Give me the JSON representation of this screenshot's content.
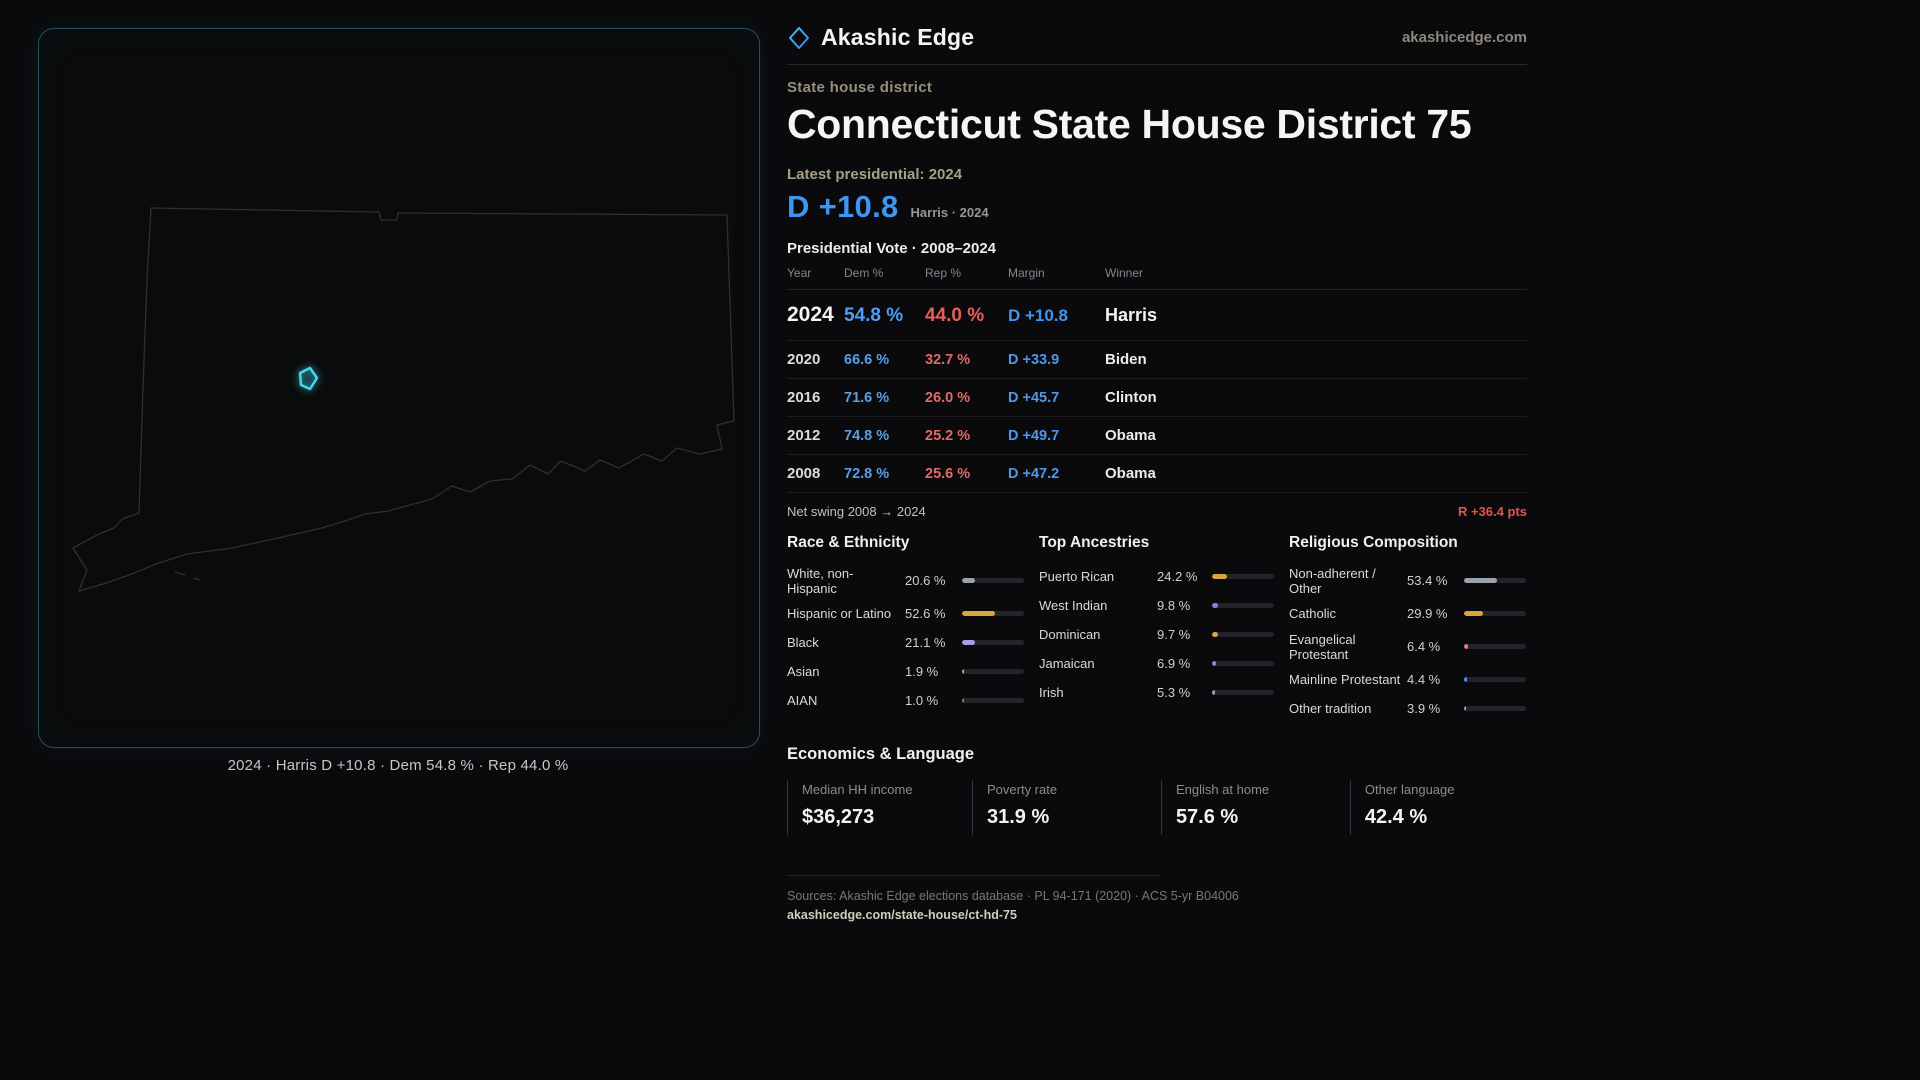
{
  "brand": {
    "name": "Akashic Edge",
    "domain": "akashicedge.com"
  },
  "header": {
    "kicker": "State house district",
    "title": "Connecticut State House District 75"
  },
  "headline": {
    "label": "Latest presidential: 2024",
    "margin": "D +10.8",
    "sub": "Harris · 2024"
  },
  "map": {
    "caption": "2024 · Harris D +10.8 · Dem 54.8 % · Rep 44.0 %",
    "district_color": "#3fd9f2"
  },
  "vote_table": {
    "title": "Presidential Vote · 2008–2024",
    "headers": [
      "Year",
      "Dem %",
      "Rep %",
      "Margin",
      "Winner"
    ],
    "rows": [
      {
        "year": "2024",
        "dem": "54.8 %",
        "rep": "44.0 %",
        "margin": "D +10.8",
        "winner": "Harris"
      },
      {
        "year": "2020",
        "dem": "66.6 %",
        "rep": "32.7 %",
        "margin": "D +33.9",
        "winner": "Biden"
      },
      {
        "year": "2016",
        "dem": "71.6 %",
        "rep": "26.0 %",
        "margin": "D +45.7",
        "winner": "Clinton"
      },
      {
        "year": "2012",
        "dem": "74.8 %",
        "rep": "25.2 %",
        "margin": "D +49.7",
        "winner": "Obama"
      },
      {
        "year": "2008",
        "dem": "72.8 %",
        "rep": "25.6 %",
        "margin": "D +47.2",
        "winner": "Obama"
      }
    ]
  },
  "net_swing": {
    "label": "Net swing 2008 → 2024",
    "value": "R +36.4 pts"
  },
  "race": {
    "title": "Race & Ethnicity",
    "rows": [
      {
        "label": "White, non-Hispanic",
        "value": "20.6 %",
        "pct": 20.6,
        "color": "#9aa2ac"
      },
      {
        "label": "Hispanic or Latino",
        "value": "52.6 %",
        "pct": 52.6,
        "color": "#d9a53f"
      },
      {
        "label": "Black",
        "value": "21.1 %",
        "pct": 21.1,
        "color": "#a89ae6"
      },
      {
        "label": "Asian",
        "value": "1.9 %",
        "pct": 1.9,
        "color": "#7fbf8f"
      },
      {
        "label": "AIAN",
        "value": "1.0 %",
        "pct": 1.0,
        "color": "#c4614d"
      }
    ]
  },
  "ancestries": {
    "title": "Top Ancestries",
    "rows": [
      {
        "label": "Puerto Rican",
        "value": "24.2 %",
        "pct": 24.2,
        "color": "#d9a53f"
      },
      {
        "label": "West Indian",
        "value": "9.8 %",
        "pct": 9.8,
        "color": "#8f7ce8"
      },
      {
        "label": "Dominican",
        "value": "9.7 %",
        "pct": 9.7,
        "color": "#d9a53f"
      },
      {
        "label": "Jamaican",
        "value": "6.9 %",
        "pct": 6.9,
        "color": "#8f7ce8"
      },
      {
        "label": "Irish",
        "value": "5.3 %",
        "pct": 5.3,
        "color": "#9aa2ac"
      }
    ]
  },
  "religion": {
    "title": "Religious Composition",
    "rows": [
      {
        "label": "Non-adherent / Other",
        "value": "53.4 %",
        "pct": 53.4,
        "color": "#9aa2ac"
      },
      {
        "label": "Catholic",
        "value": "29.9 %",
        "pct": 29.9,
        "color": "#d9a53f"
      },
      {
        "label": "Evangelical Protestant",
        "value": "6.4 %",
        "pct": 6.4,
        "color": "#e87f7a"
      },
      {
        "label": "Mainline Protestant",
        "value": "4.4 %",
        "pct": 4.4,
        "color": "#4f8df0"
      },
      {
        "label": "Other tradition",
        "value": "3.9 %",
        "pct": 3.9,
        "color": "#9aa2ac"
      }
    ]
  },
  "economics": {
    "title": "Economics & Language",
    "stats": [
      {
        "label": "Median HH income",
        "value": "$36,273"
      },
      {
        "label": "Poverty rate",
        "value": "31.9 %"
      },
      {
        "label": "English at home",
        "value": "57.6 %"
      },
      {
        "label": "Other language",
        "value": "42.4 %"
      }
    ]
  },
  "footer": {
    "sources": "Sources: Akashic Edge elections database · PL 94-171 (2020) · ACS 5-yr B04006",
    "link": "akashicedge.com/state-house/ct-hd-75"
  },
  "colors": {
    "dem": "#3d96f2",
    "rep": "#e0544e",
    "accent": "#3fd9f2",
    "gold": "#d9a53f"
  }
}
